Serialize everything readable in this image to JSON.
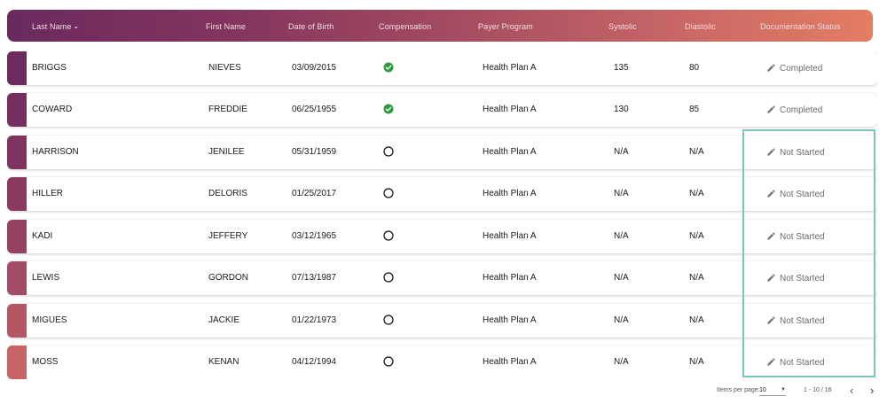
{
  "columns": {
    "last_name": "Last Name",
    "first_name": "First Name",
    "dob": "Date of Birth",
    "compensation": "Compensation",
    "payer_program": "Payer Program",
    "systolic": "Systolic",
    "diastolic": "Diastolic",
    "doc_status": "Documentation Status"
  },
  "rows": [
    {
      "last": "BRIGGS",
      "first": "NIEVES",
      "dob": "03/09/2015",
      "comp": "check",
      "payer": "Health Plan A",
      "systolic": "135",
      "diastolic": "80",
      "status": "Completed",
      "color": "#6d2a5f"
    },
    {
      "last": "COWARD",
      "first": "FREDDIE",
      "dob": "06/25/1955",
      "comp": "check",
      "payer": "Health Plan A",
      "systolic": "130",
      "diastolic": "85",
      "status": "Completed",
      "color": "#762d5f"
    },
    {
      "last": "HARRISON",
      "first": "JENILEE",
      "dob": "05/31/1959",
      "comp": "empty",
      "payer": "Health Plan A",
      "systolic": "N/A",
      "diastolic": "N/A",
      "status": "Not Started",
      "color": "#7f335f"
    },
    {
      "last": "HILLER",
      "first": "DELORIS",
      "dob": "01/25/2017",
      "comp": "empty",
      "payer": "Health Plan A",
      "systolic": "N/A",
      "diastolic": "N/A",
      "status": "Not Started",
      "color": "#8a3a60"
    },
    {
      "last": "KADI",
      "first": "JEFFERY",
      "dob": "03/12/1965",
      "comp": "empty",
      "payer": "Health Plan A",
      "systolic": "N/A",
      "diastolic": "N/A",
      "status": "Not Started",
      "color": "#964262"
    },
    {
      "last": "LEWIS",
      "first": "GORDON",
      "dob": "07/13/1987",
      "comp": "empty",
      "payer": "Health Plan A",
      "systolic": "N/A",
      "diastolic": "N/A",
      "status": "Not Started",
      "color": "#a34b64"
    },
    {
      "last": "MIGUES",
      "first": "JACKIE",
      "dob": "01/22/1973",
      "comp": "empty",
      "payer": "Health Plan A",
      "systolic": "N/A",
      "diastolic": "N/A",
      "status": "Not Started",
      "color": "#b45765"
    },
    {
      "last": "MOSS",
      "first": "KENAN",
      "dob": "04/12/1994",
      "comp": "empty",
      "payer": "Health Plan A",
      "systolic": "N/A",
      "diastolic": "N/A",
      "status": "Not Started",
      "color": "#c66466"
    }
  ],
  "pagination": {
    "items_per_page_label": "Items per page:",
    "items_per_page_value": "10",
    "range": "1 - 10 / 16"
  },
  "colors": {
    "check_green": "#2e9a3e",
    "highlight_border": "#7fc4b8"
  },
  "icons": {
    "sort": "chevron-down-icon",
    "completed": "check-circle-icon",
    "not_completed": "empty-circle-icon",
    "edit": "pencil-icon",
    "prev": "chevron-left-icon",
    "next": "chevron-right-icon"
  }
}
